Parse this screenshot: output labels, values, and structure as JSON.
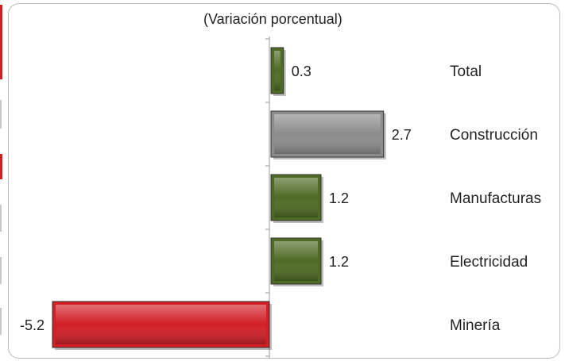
{
  "chart_data": {
    "type": "bar",
    "orientation": "horizontal",
    "subtitle": "(Variación porcentual)",
    "categories": [
      "Total",
      "Construcción",
      "Manufacturas",
      "Electricidad",
      "Minería"
    ],
    "values": [
      0.3,
      2.7,
      1.2,
      1.2,
      -5.2
    ],
    "value_labels": [
      "0.3",
      "2.7",
      "1.2",
      "1.2",
      "-5.2"
    ],
    "bar_colors": [
      "#4e6b25",
      "#8c8c8c",
      "#4e6b25",
      "#4e6b25",
      "#d11f26"
    ],
    "xlim": [
      -5.2,
      2.7
    ],
    "grid": false,
    "legend": "none"
  }
}
